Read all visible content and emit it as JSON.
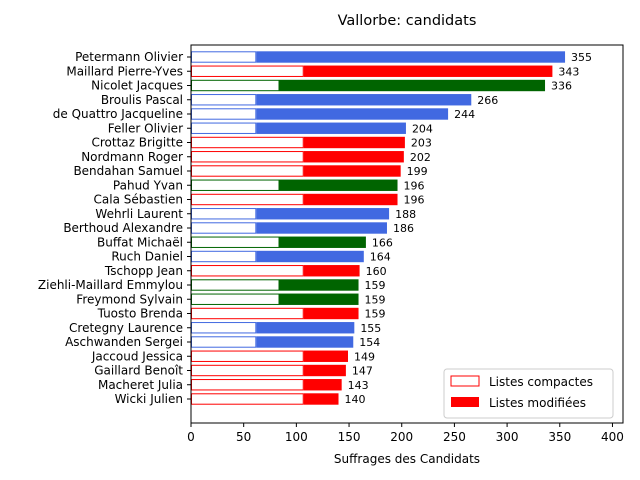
{
  "chart_data": {
    "type": "bar",
    "orientation": "horizontal",
    "stacked": true,
    "title": "Vallorbe: candidats",
    "xlabel": "Suffrages des Candidats",
    "ylabel": "",
    "xlim": [
      0,
      410
    ],
    "xticks": [
      0,
      50,
      100,
      150,
      200,
      250,
      300,
      350,
      400
    ],
    "grid": false,
    "legend_position": "lower-right",
    "legend": {
      "compact": "Listes compactes",
      "modified": "Listes modifiées"
    },
    "series_styles": {
      "compact": "white fill with party-colored outline",
      "modified": "solid party-colored fill"
    },
    "party_colors": {
      "blue": "#4169e1",
      "red": "#ff0000",
      "green": "#006400"
    },
    "compact_values": {
      "blue": 62,
      "red": 107,
      "green": 84
    },
    "categories": [
      "Petermann Olivier",
      "Maillard Pierre-Yves",
      "Nicolet Jacques",
      "Broulis Pascal",
      "de Quattro Jacqueline",
      "Feller Olivier",
      "Crottaz Brigitte",
      "Nordmann Roger",
      "Bendahan Samuel",
      "Pahud Yvan",
      "Cala Sébastien",
      "Wehrli Laurent",
      "Berthoud Alexandre",
      "Buffat Michaël",
      "Ruch Daniel",
      "Tschopp Jean",
      "Ziehli-Maillard Emmylou",
      "Freymond Sylvain",
      "Tuosto Brenda",
      "Cretegny Laurence",
      "Aschwanden Sergei",
      "Jaccoud Jessica",
      "Gaillard Benoît",
      "Macheret Julia",
      "Wicki Julien"
    ],
    "totals": [
      355,
      343,
      336,
      266,
      244,
      204,
      203,
      202,
      199,
      196,
      196,
      188,
      186,
      166,
      164,
      160,
      159,
      159,
      159,
      155,
      154,
      149,
      147,
      143,
      140
    ],
    "parties": [
      "blue",
      "red",
      "green",
      "blue",
      "blue",
      "blue",
      "red",
      "red",
      "red",
      "green",
      "red",
      "blue",
      "blue",
      "green",
      "blue",
      "red",
      "green",
      "green",
      "red",
      "blue",
      "blue",
      "red",
      "red",
      "red",
      "red"
    ]
  }
}
